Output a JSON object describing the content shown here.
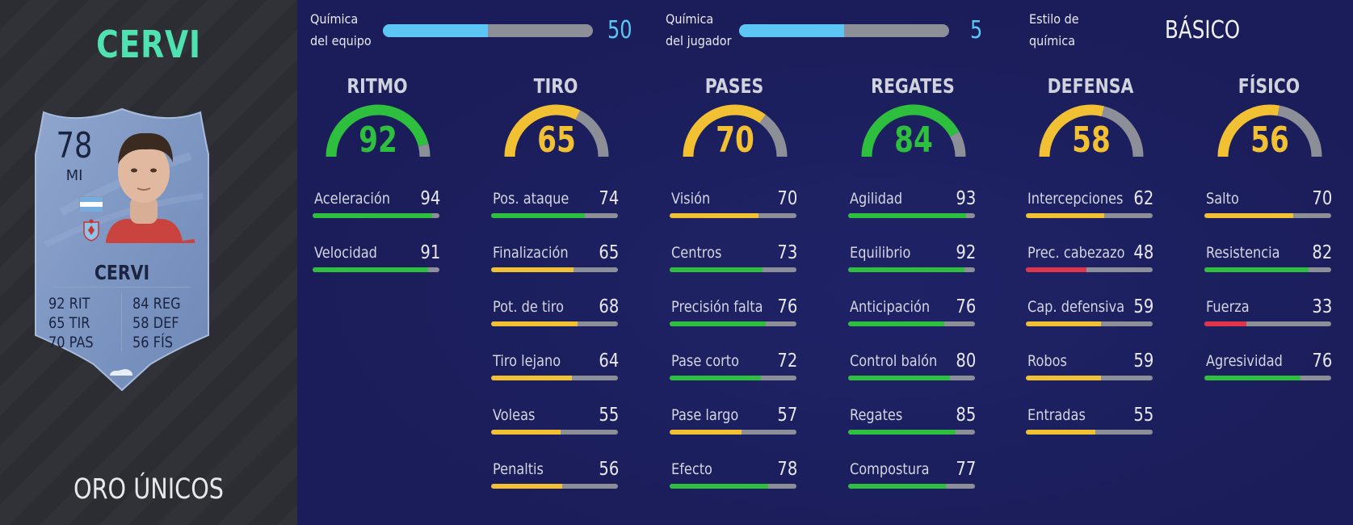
{
  "player": {
    "name_big": "CERVI",
    "rarity": "ORO ÚNICOS"
  },
  "card": {
    "rating": "78",
    "position": "MI",
    "name": "CERVI",
    "stats": {
      "rit": {
        "value": "92",
        "label": "RIT"
      },
      "tir": {
        "value": "65",
        "label": "TIR"
      },
      "pas": {
        "value": "70",
        "label": "PAS"
      },
      "reg": {
        "value": "84",
        "label": "REG"
      },
      "def": {
        "value": "58",
        "label": "DEF"
      },
      "fis": {
        "value": "56",
        "label": "FÍS"
      }
    },
    "flag_colors": [
      "#74acdf",
      "#ffffff",
      "#74acdf"
    ],
    "club_icon": "club-crest-icon",
    "boot_icon": "boot-icon"
  },
  "chemistry": {
    "team": {
      "label": "Química del equipo",
      "value": "50",
      "fill": 0.5
    },
    "player": {
      "label": "Química del jugador",
      "value": "5",
      "fill": 0.5
    },
    "style": {
      "label": "Estilo de química",
      "value": "BÁSICO"
    }
  },
  "colors": {
    "green": "#2fbf3f",
    "yellow": "#f2c133",
    "red": "#e0344a",
    "track": "#8d8f98",
    "chem_blue": "#5cc6f4",
    "accent_name": "#4fe2b0"
  },
  "categories": [
    {
      "title": "RITMO",
      "value": "92",
      "color": "#2fbf3f",
      "stats": [
        {
          "label": "Aceleración",
          "value": "94",
          "color": "#2fbf3f"
        },
        {
          "label": "Velocidad",
          "value": "91",
          "color": "#2fbf3f"
        }
      ]
    },
    {
      "title": "TIRO",
      "value": "65",
      "color": "#f2c133",
      "stats": [
        {
          "label": "Pos. ataque",
          "value": "74",
          "color": "#2fbf3f"
        },
        {
          "label": "Finalización",
          "value": "65",
          "color": "#f2c133"
        },
        {
          "label": "Pot. de tiro",
          "value": "68",
          "color": "#f2c133"
        },
        {
          "label": "Tiro lejano",
          "value": "64",
          "color": "#f2c133"
        },
        {
          "label": "Voleas",
          "value": "55",
          "color": "#f2c133"
        },
        {
          "label": "Penaltis",
          "value": "56",
          "color": "#f2c133"
        }
      ]
    },
    {
      "title": "PASES",
      "value": "70",
      "color": "#f2c133",
      "stats": [
        {
          "label": "Visión",
          "value": "70",
          "color": "#f2c133"
        },
        {
          "label": "Centros",
          "value": "73",
          "color": "#2fbf3f"
        },
        {
          "label": "Precisión falta",
          "value": "76",
          "color": "#2fbf3f"
        },
        {
          "label": "Pase corto",
          "value": "72",
          "color": "#2fbf3f"
        },
        {
          "label": "Pase largo",
          "value": "57",
          "color": "#f2c133"
        },
        {
          "label": "Efecto",
          "value": "78",
          "color": "#2fbf3f"
        }
      ]
    },
    {
      "title": "REGATES",
      "value": "84",
      "color": "#2fbf3f",
      "stats": [
        {
          "label": "Agilidad",
          "value": "93",
          "color": "#2fbf3f"
        },
        {
          "label": "Equilibrio",
          "value": "92",
          "color": "#2fbf3f"
        },
        {
          "label": "Anticipación",
          "value": "76",
          "color": "#2fbf3f"
        },
        {
          "label": "Control balón",
          "value": "80",
          "color": "#2fbf3f"
        },
        {
          "label": "Regates",
          "value": "85",
          "color": "#2fbf3f"
        },
        {
          "label": "Compostura",
          "value": "77",
          "color": "#2fbf3f"
        }
      ]
    },
    {
      "title": "DEFENSA",
      "value": "58",
      "color": "#f2c133",
      "stats": [
        {
          "label": "Intercepciones",
          "value": "62",
          "color": "#f2c133"
        },
        {
          "label": "Prec. cabezazo",
          "value": "48",
          "color": "#e0344a"
        },
        {
          "label": "Cap. defensiva",
          "value": "59",
          "color": "#f2c133"
        },
        {
          "label": "Robos",
          "value": "59",
          "color": "#f2c133"
        },
        {
          "label": "Entradas",
          "value": "55",
          "color": "#f2c133"
        }
      ]
    },
    {
      "title": "FÍSICO",
      "value": "56",
      "color": "#f2c133",
      "stats": [
        {
          "label": "Salto",
          "value": "70",
          "color": "#f2c133"
        },
        {
          "label": "Resistencia",
          "value": "82",
          "color": "#2fbf3f"
        },
        {
          "label": "Fuerza",
          "value": "33",
          "color": "#e0344a"
        },
        {
          "label": "Agresividad",
          "value": "76",
          "color": "#2fbf3f"
        }
      ]
    }
  ]
}
